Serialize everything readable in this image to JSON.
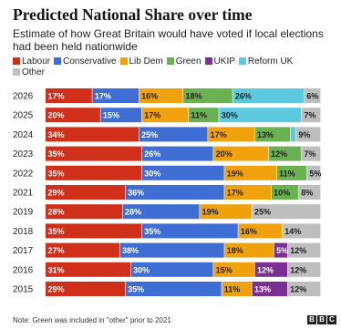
{
  "header": {
    "title": "Predicted National Share over time",
    "subtitle": "Estimate of how Great Britain would have voted if local elections had been held nationwide"
  },
  "footer": {
    "note": "Note: Green was included in \"other\" prior to 2021",
    "logo": [
      "B",
      "B",
      "C"
    ]
  },
  "chart_data": {
    "type": "bar",
    "orientation": "horizontal",
    "stacked": true,
    "categories": [
      "2026",
      "2025",
      "2024",
      "2023",
      "2022",
      "2021",
      "2019",
      "2018",
      "2017",
      "2016",
      "2015"
    ],
    "series": [
      {
        "name": "Labour",
        "color": "#d02f1a",
        "values": [
          17,
          20,
          34,
          35,
          35,
          29,
          28,
          35,
          27,
          31,
          29
        ]
      },
      {
        "name": "Conservative",
        "color": "#3e6ed3",
        "values": [
          17,
          15,
          25,
          26,
          30,
          36,
          28,
          35,
          38,
          30,
          35
        ]
      },
      {
        "name": "Lib Dem",
        "color": "#f0a20d",
        "values": [
          16,
          17,
          17,
          20,
          19,
          17,
          19,
          16,
          18,
          15,
          11
        ]
      },
      {
        "name": "Green",
        "color": "#6ab151",
        "values": [
          18,
          11,
          13,
          12,
          11,
          10,
          null,
          null,
          null,
          null,
          null
        ]
      },
      {
        "name": "UKIP",
        "color": "#7b2f93",
        "values": [
          null,
          null,
          null,
          null,
          null,
          null,
          null,
          null,
          5,
          12,
          13
        ]
      },
      {
        "name": "Reform UK",
        "color": "#5cc9df",
        "values": [
          26,
          30,
          2,
          null,
          null,
          null,
          null,
          null,
          null,
          null,
          null
        ]
      },
      {
        "name": "Other",
        "color": "#bebebe",
        "values": [
          6,
          7,
          9,
          7,
          5,
          8,
          25,
          14,
          12,
          12,
          12
        ]
      }
    ],
    "labels": [
      [
        "17%",
        "17%",
        "16%",
        "18%",
        null,
        "26%",
        "6%"
      ],
      [
        "20%",
        "15%",
        "17%",
        "11%",
        null,
        "30%",
        "7%"
      ],
      [
        "34%",
        "25%",
        "17%",
        "13%",
        null,
        null,
        "9%"
      ],
      [
        "35%",
        "26%",
        "20%",
        "12%",
        null,
        null,
        "7%"
      ],
      [
        "35%",
        "30%",
        "19%",
        "11%",
        null,
        null,
        "5%"
      ],
      [
        "29%",
        "36%",
        "17%",
        "10%",
        null,
        null,
        "8%"
      ],
      [
        "28%",
        "28%",
        "19%",
        null,
        null,
        null,
        "25%"
      ],
      [
        "35%",
        "35%",
        "16%",
        null,
        null,
        null,
        "14%"
      ],
      [
        "27%",
        "38%",
        "18%",
        null,
        "5%",
        null,
        "12%"
      ],
      [
        "31%",
        "30%",
        "15%",
        null,
        "12%",
        null,
        "12%"
      ],
      [
        "29%",
        "35%",
        "11%",
        null,
        "13%",
        null,
        "12%"
      ]
    ],
    "xlim": [
      0,
      100
    ]
  }
}
